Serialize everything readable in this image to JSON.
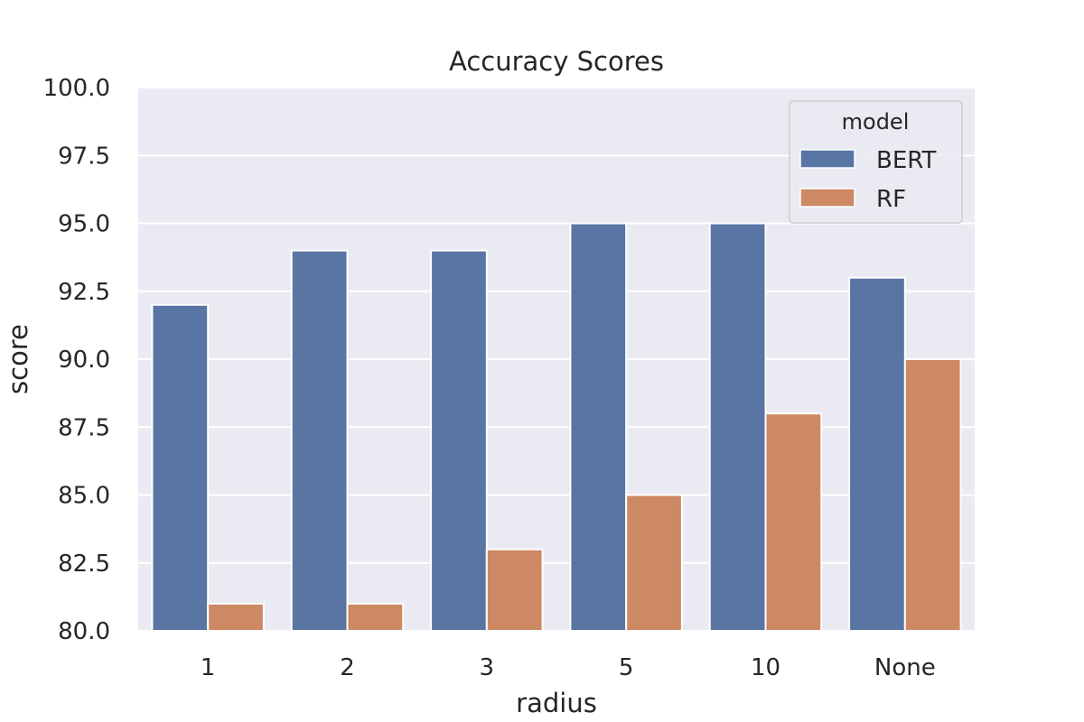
{
  "chart_data": {
    "type": "bar",
    "title": "Accuracy Scores",
    "xlabel": "radius",
    "ylabel": "score",
    "categories": [
      "1",
      "2",
      "3",
      "5",
      "10",
      "None"
    ],
    "series": [
      {
        "name": "BERT",
        "values": [
          92,
          94,
          94,
          95,
          95,
          93
        ]
      },
      {
        "name": "RF",
        "values": [
          81,
          81,
          83,
          85,
          88,
          90
        ]
      }
    ],
    "ylim": [
      80,
      100
    ],
    "yticks": [
      "80.0",
      "82.5",
      "85.0",
      "87.5",
      "90.0",
      "92.5",
      "95.0",
      "97.5",
      "100.0"
    ],
    "grid": true,
    "legend": {
      "title": "model",
      "position": "top-right"
    },
    "colors": {
      "BERT": "#5975a4",
      "RF": "#cc8963",
      "background": "#eaeaf2",
      "grid": "#ffffff"
    }
  }
}
